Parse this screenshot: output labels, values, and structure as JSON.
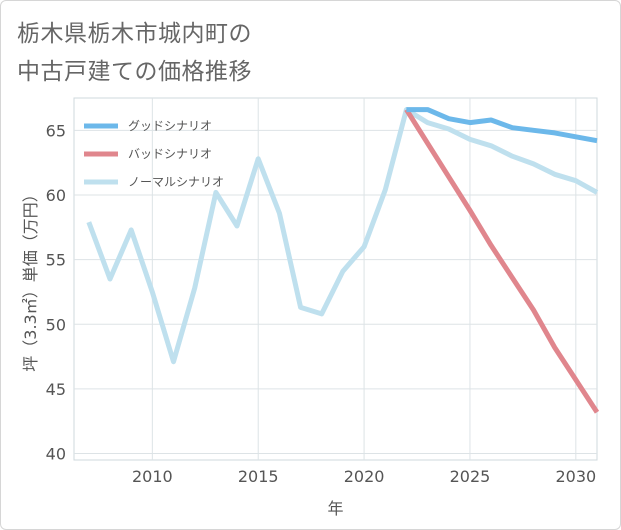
{
  "title_lines": [
    "栃木県栃木市城内町の",
    "中古戸建ての価格推移"
  ],
  "chart_data": {
    "type": "line",
    "title": "栃木県栃木市城内町の中古戸建ての価格推移",
    "xlabel": "年",
    "ylabel": "坪（3.3㎡）単価（万円）",
    "xlim": [
      2006.3,
      2031
    ],
    "ylim": [
      39.5,
      67.5
    ],
    "xticks": [
      2010,
      2015,
      2020,
      2025,
      2030
    ],
    "yticks": [
      40,
      45,
      50,
      55,
      60,
      65
    ],
    "grid": true,
    "legend_position": "top-left",
    "series": [
      {
        "name": "グッドシナリオ",
        "color": "#6cb8ea",
        "x": [
          2022,
          2023,
          2024,
          2025,
          2026,
          2027,
          2028,
          2029,
          2030,
          2031
        ],
        "y": [
          66.6,
          66.6,
          65.9,
          65.6,
          65.8,
          65.2,
          65.0,
          64.8,
          64.5,
          64.2
        ]
      },
      {
        "name": "バッドシナリオ",
        "color": "#e0868d",
        "x": [
          2022,
          2023,
          2024,
          2025,
          2026,
          2027,
          2028,
          2029,
          2030,
          2031
        ],
        "y": [
          66.6,
          64.0,
          61.4,
          58.8,
          56.1,
          53.6,
          51.1,
          48.2,
          45.7,
          43.2
        ]
      },
      {
        "name": "ノーマルシナリオ",
        "color": "#bfe0ee",
        "x": [
          2007,
          2008,
          2009,
          2010,
          2011,
          2012,
          2013,
          2014,
          2015,
          2016,
          2017,
          2018,
          2019,
          2020,
          2021,
          2022,
          2023,
          2024,
          2025,
          2026,
          2027,
          2028,
          2029,
          2030,
          2031
        ],
        "y": [
          57.9,
          53.5,
          57.3,
          52.5,
          47.1,
          52.8,
          60.2,
          57.6,
          62.8,
          58.6,
          51.3,
          50.8,
          54.1,
          56.0,
          60.4,
          66.6,
          65.6,
          65.1,
          64.3,
          63.8,
          63.0,
          62.4,
          61.6,
          61.1,
          60.2
        ]
      }
    ]
  }
}
